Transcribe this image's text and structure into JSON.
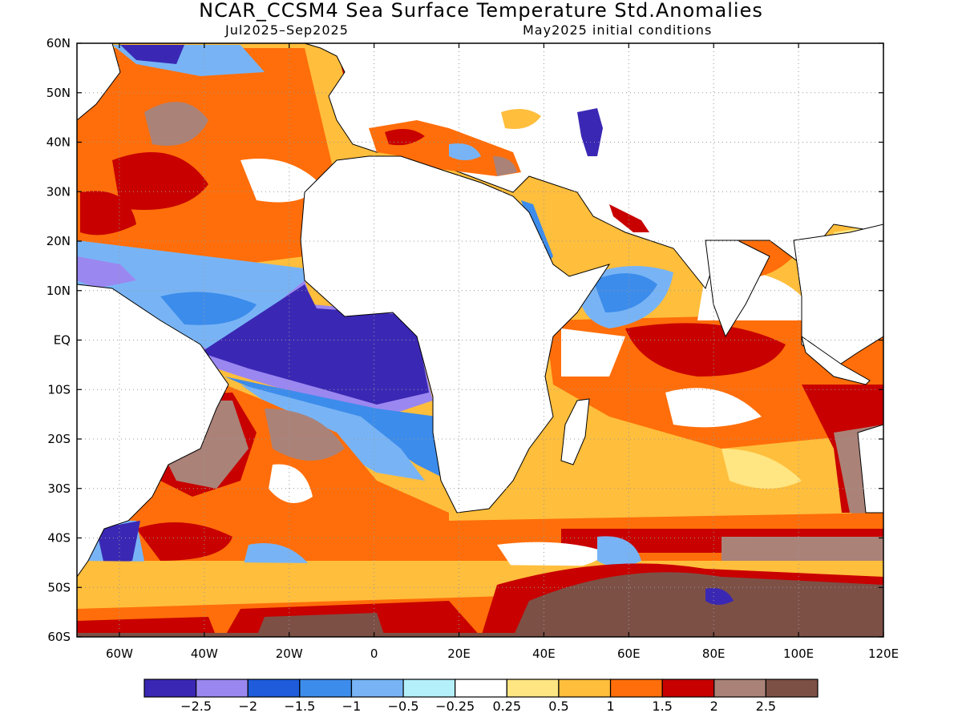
{
  "title": "NCAR_CCSM4 Sea Surface Temperature Std.Anomalies",
  "subtitle_left": "Jul2025–Sep2025",
  "subtitle_right": "May2025 initial conditions",
  "map": {
    "lon_range": [
      -70,
      120
    ],
    "lat_range": [
      -60,
      60
    ],
    "lat_ticks": [
      {
        "value": 60,
        "label": "60N"
      },
      {
        "value": 50,
        "label": "50N"
      },
      {
        "value": 40,
        "label": "40N"
      },
      {
        "value": 30,
        "label": "30N"
      },
      {
        "value": 20,
        "label": "20N"
      },
      {
        "value": 10,
        "label": "10N"
      },
      {
        "value": 0,
        "label": "EQ"
      },
      {
        "value": -10,
        "label": "10S"
      },
      {
        "value": -20,
        "label": "20S"
      },
      {
        "value": -30,
        "label": "30S"
      },
      {
        "value": -40,
        "label": "40S"
      },
      {
        "value": -50,
        "label": "50S"
      },
      {
        "value": -60,
        "label": "60S"
      }
    ],
    "lon_ticks": [
      {
        "value": -60,
        "label": "60W"
      },
      {
        "value": -40,
        "label": "40W"
      },
      {
        "value": -20,
        "label": "20W"
      },
      {
        "value": 0,
        "label": "0"
      },
      {
        "value": 20,
        "label": "20E"
      },
      {
        "value": 40,
        "label": "40E"
      },
      {
        "value": 60,
        "label": "60E"
      },
      {
        "value": 80,
        "label": "80E"
      },
      {
        "value": 100,
        "label": "100E"
      },
      {
        "value": 120,
        "label": "120E"
      }
    ],
    "grid": "dotted",
    "land_color": "#ffffff"
  },
  "colorbar": {
    "colors": [
      "#3a28b4",
      "#9b87f0",
      "#1e5cdc",
      "#3c8ceb",
      "#78b4f5",
      "#b4f0fa",
      "#ffffff",
      "#ffe682",
      "#ffbe3c",
      "#ff6e0a",
      "#c80000",
      "#aa8278",
      "#7d5046"
    ],
    "labels": [
      "−2.5",
      "−2",
      "−1.5",
      "−1",
      "−0.5",
      "−0.25",
      "0.25",
      "0.5",
      "1",
      "1.5",
      "2",
      "2.5"
    ]
  },
  "anomaly_regions": [
    {
      "name": "tropical-atlantic-cold",
      "level": -2.5,
      "lon": [
        -18,
        12
      ],
      "lat": [
        -10,
        8
      ]
    },
    {
      "name": "south-atlantic-warm",
      "level": 2.5,
      "lon": [
        -45,
        -20
      ],
      "lat": [
        -35,
        -15
      ]
    },
    {
      "name": "southern-ocean-warm",
      "level": 2.5,
      "lon": [
        45,
        115
      ],
      "lat": [
        -60,
        -45
      ]
    },
    {
      "name": "north-atlantic-warm",
      "level": 1.5,
      "lon": [
        -70,
        -10
      ],
      "lat": [
        20,
        55
      ]
    },
    {
      "name": "indian-ocean-warm",
      "level": 1.5,
      "lon": [
        60,
        115
      ],
      "lat": [
        -20,
        0
      ]
    },
    {
      "name": "arabian-sea-cool",
      "level": -1,
      "lon": [
        52,
        65
      ],
      "lat": [
        5,
        15
      ]
    },
    {
      "name": "caspian-cold",
      "level": -2.5,
      "lon": [
        47,
        54
      ],
      "lat": [
        37,
        47
      ]
    }
  ]
}
